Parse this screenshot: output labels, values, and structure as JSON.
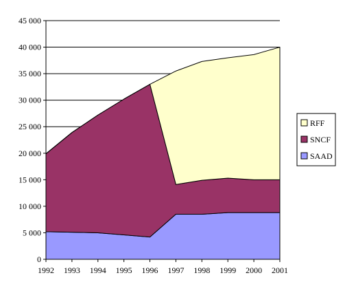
{
  "chart_data": {
    "type": "area",
    "stacked": true,
    "x": [
      1992,
      1993,
      1994,
      1995,
      1996,
      1997,
      1998,
      1999,
      2000,
      2001
    ],
    "x_tick_labels": [
      "1992",
      "1993",
      "1994",
      "1995",
      "1996",
      "1997",
      "1998",
      "1999",
      "2000",
      "2001"
    ],
    "series": [
      {
        "name": "SAAD",
        "color": "#9999ff",
        "values": [
          5200,
          5100,
          5000,
          4600,
          4200,
          8500,
          8500,
          8800,
          8800,
          8800
        ]
      },
      {
        "name": "SNCF",
        "color": "#993366",
        "values": [
          14700,
          18800,
          22200,
          25600,
          28800,
          5600,
          6400,
          6500,
          6200,
          6200
        ]
      },
      {
        "name": "RFF",
        "color": "#ffffcc",
        "values": [
          0,
          0,
          0,
          0,
          0,
          21400,
          22400,
          22700,
          23600,
          25000
        ]
      }
    ],
    "ylim": [
      0,
      45000
    ],
    "y_ticks": [
      0,
      5000,
      10000,
      15000,
      20000,
      25000,
      30000,
      35000,
      40000,
      45000
    ],
    "y_tick_labels": [
      "0",
      "5 000",
      "10 000",
      "15 000",
      "20 000",
      "25 000",
      "30 000",
      "35 000",
      "40 000",
      "45 000"
    ],
    "grid": "horizontal",
    "legend": {
      "placement": "right",
      "order": [
        "RFF",
        "SNCF",
        "SAAD"
      ]
    },
    "title": "",
    "xlabel": "",
    "ylabel": ""
  }
}
